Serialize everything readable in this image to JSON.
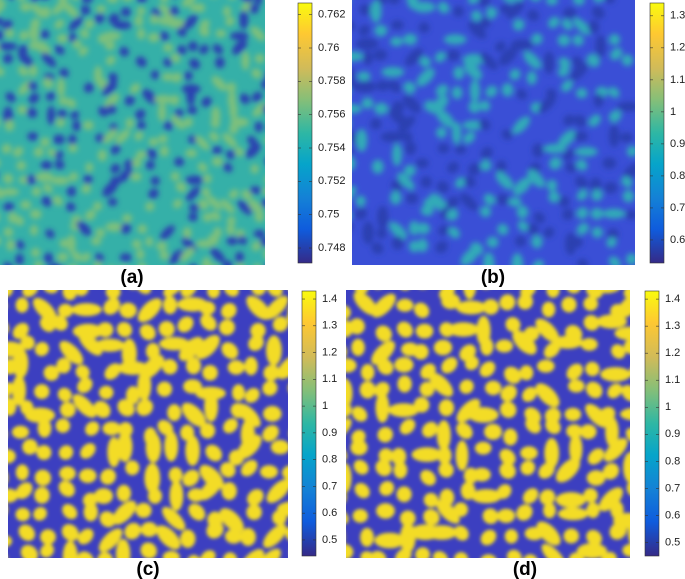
{
  "panels": [
    {
      "label": "(a)",
      "colorbar": {
        "lim": [
          0.7471,
          0.7627
        ],
        "ticks": [
          0.748,
          0.75,
          0.752,
          0.754,
          0.756,
          0.758,
          0.76,
          0.762
        ]
      }
    },
    {
      "label": "(b)",
      "colorbar": {
        "lim": [
          0.528,
          1.34
        ],
        "ticks": [
          0.6,
          0.7,
          0.8,
          0.9,
          1,
          1.1,
          1.2,
          1.3
        ]
      }
    },
    {
      "label": "(c)",
      "colorbar": {
        "lim": [
          0.44,
          1.43
        ],
        "ticks": [
          0.5,
          0.6,
          0.7,
          0.8,
          0.9,
          1,
          1.1,
          1.2,
          1.3,
          1.4
        ]
      }
    },
    {
      "label": "(d)",
      "colorbar": {
        "lim": [
          0.45,
          1.43
        ],
        "ticks": [
          0.5,
          0.6,
          0.7,
          0.8,
          0.9,
          1,
          1.1,
          1.2,
          1.3,
          1.4
        ]
      }
    }
  ]
}
